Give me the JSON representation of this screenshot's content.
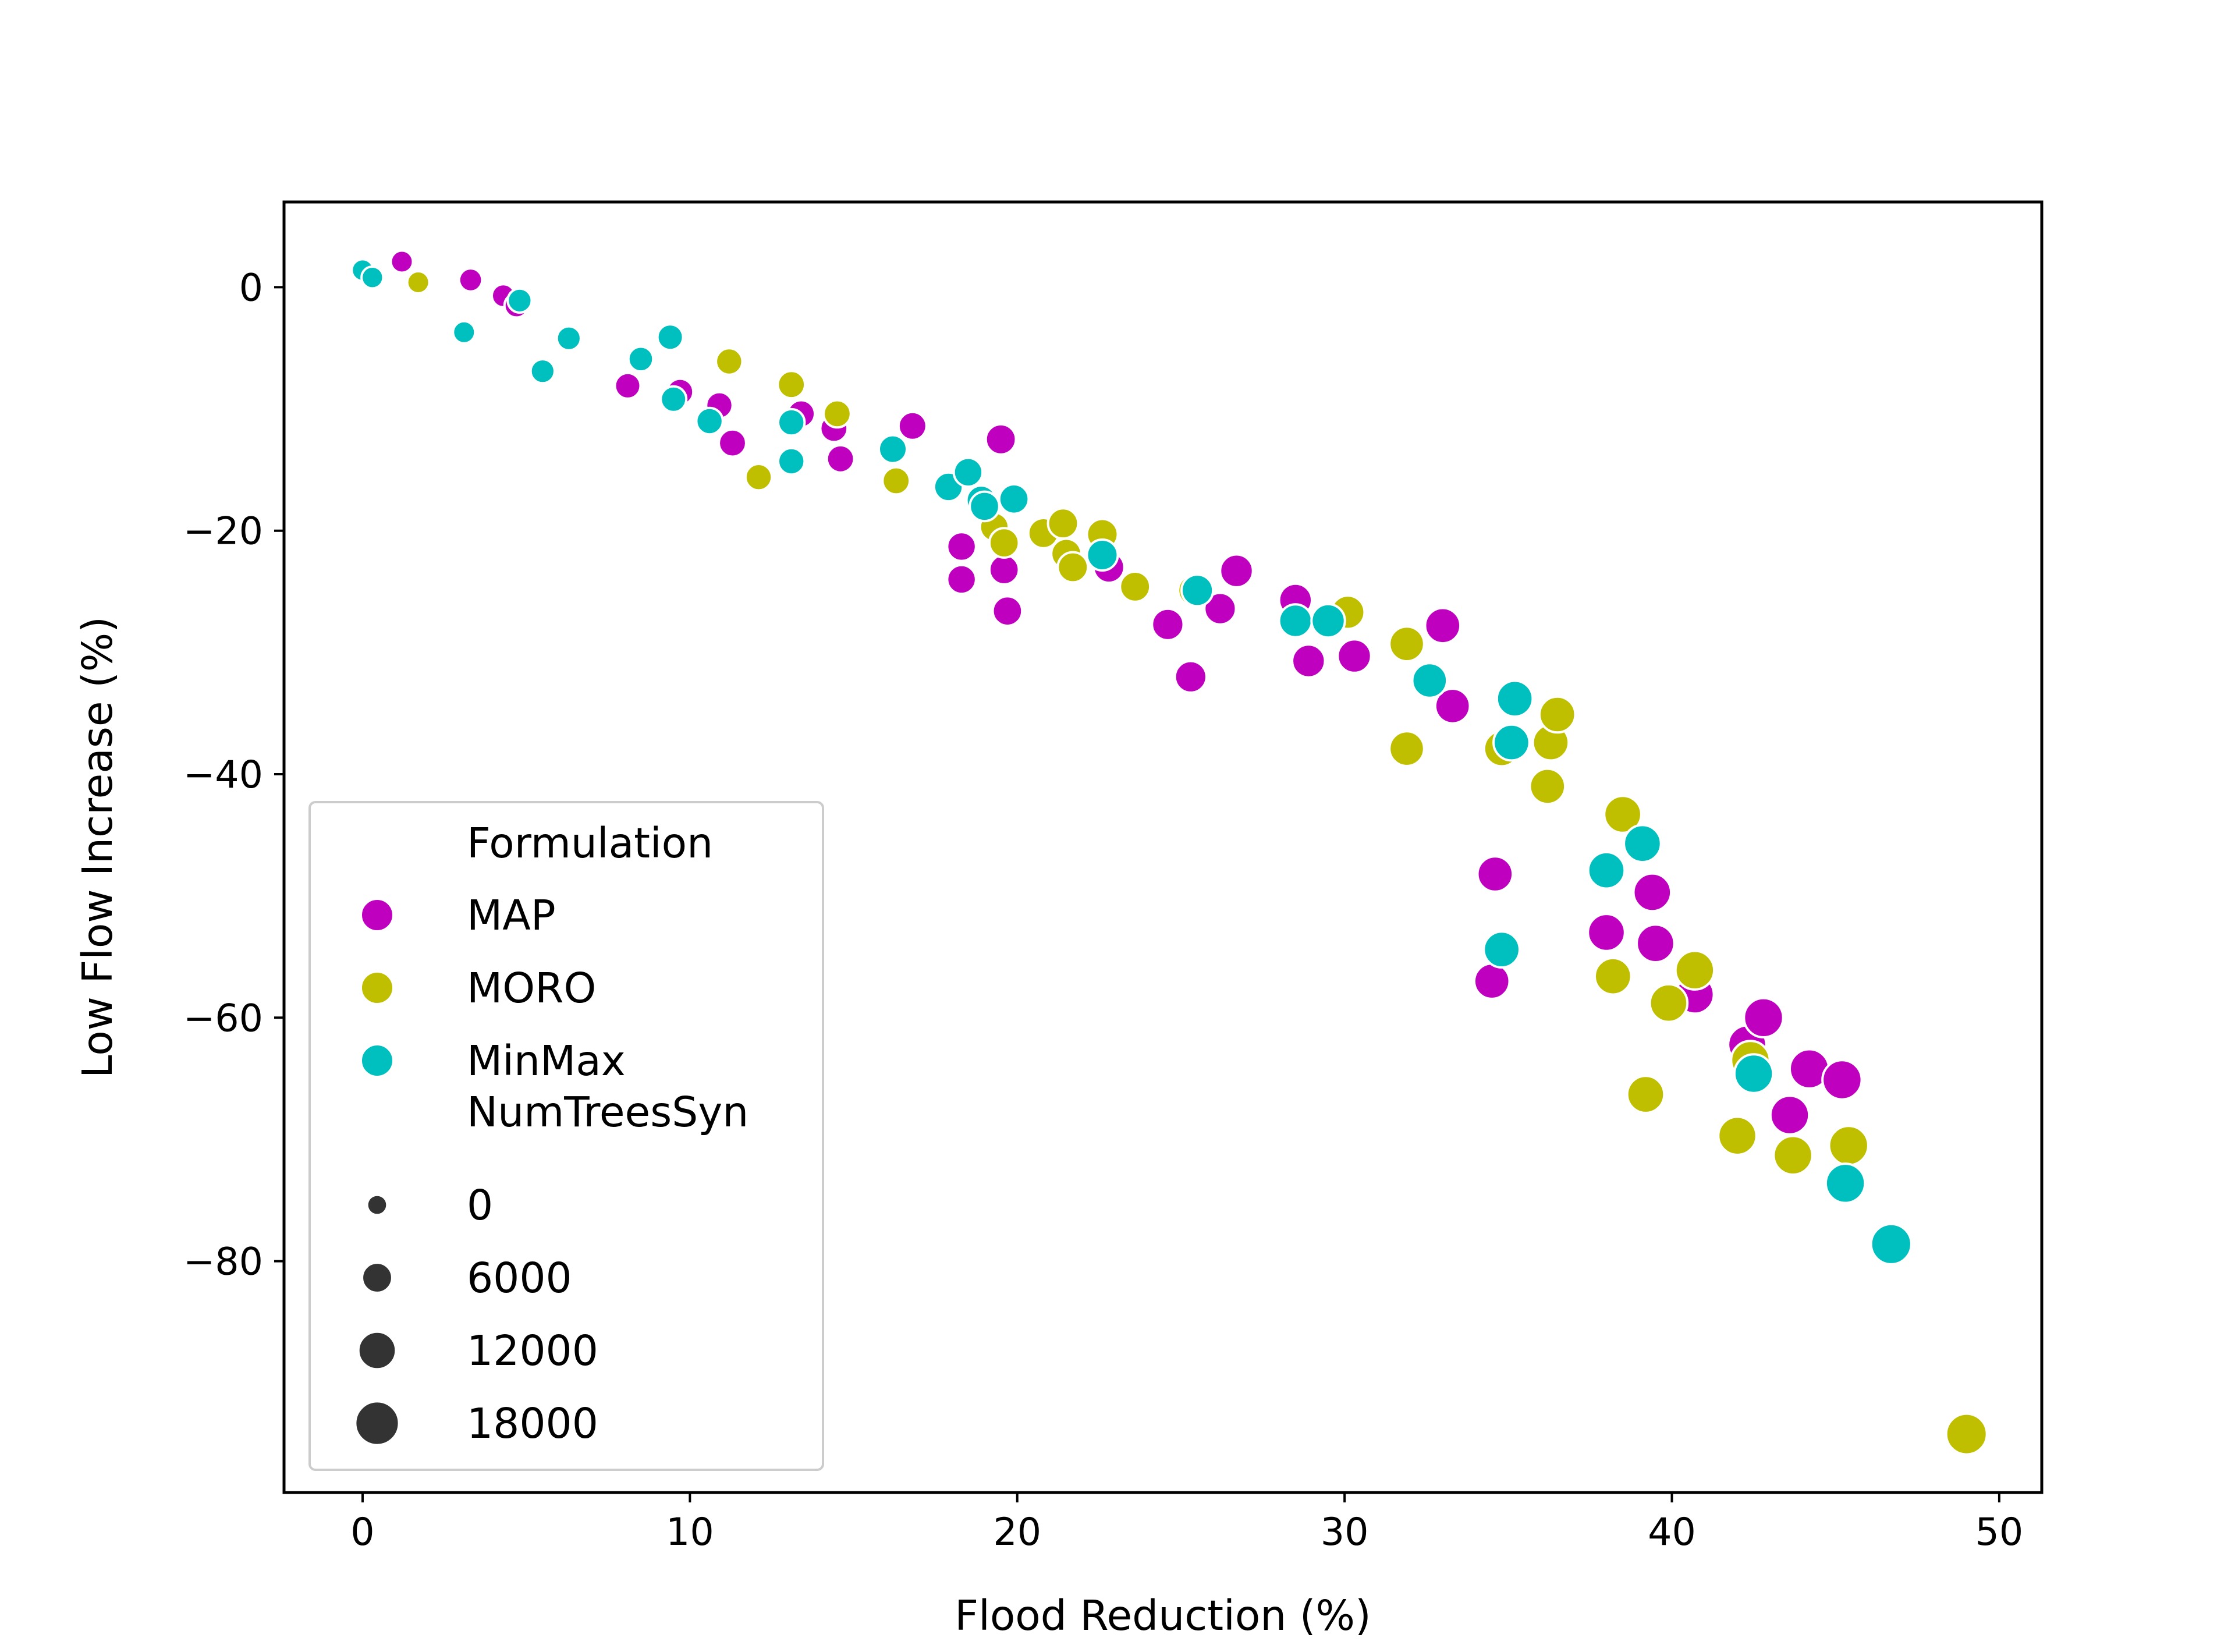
{
  "chart_data": {
    "type": "scatter",
    "xlabel": "Flood Reduction (%)",
    "ylabel": "Low Flow Increase (%)",
    "xlim": [
      -2.4,
      51.3
    ],
    "ylim": [
      -99,
      7
    ],
    "xticks": [
      0,
      10,
      20,
      30,
      40,
      50
    ],
    "yticks": [
      0,
      -20,
      -40,
      -60,
      -80
    ],
    "grid": false,
    "legend_placement": "lower-left",
    "legend": {
      "hue_title": "Formulation",
      "size_title": "NumTreesSyn",
      "size_entries": [
        {
          "label": "0",
          "value": 0
        },
        {
          "label": "6000",
          "value": 6000
        },
        {
          "label": "12000",
          "value": 12000
        },
        {
          "label": "18000",
          "value": 18000
        }
      ]
    },
    "series": [
      {
        "name": "MAP",
        "color": "#bf00bf",
        "points": [
          [
            1.2,
            2.1,
            1000
          ],
          [
            3.3,
            0.6,
            1500
          ],
          [
            4.3,
            -0.7,
            1500
          ],
          [
            4.7,
            -1.5,
            2000
          ],
          [
            8.1,
            -8.1,
            3000
          ],
          [
            9.7,
            -8.6,
            3500
          ],
          [
            10.9,
            -9.7,
            3500
          ],
          [
            11.3,
            -12.8,
            4000
          ],
          [
            13.4,
            -10.4,
            4000
          ],
          [
            14.4,
            -11.6,
            4000
          ],
          [
            14.6,
            -14.1,
            4000
          ],
          [
            16.8,
            -11.4,
            4500
          ],
          [
            18.3,
            -21.3,
            5000
          ],
          [
            18.3,
            -24.0,
            5000
          ],
          [
            19.5,
            -12.5,
            6000
          ],
          [
            19.6,
            -23.2,
            5500
          ],
          [
            19.7,
            -26.6,
            5500
          ],
          [
            22.8,
            -23.0,
            6500
          ],
          [
            24.6,
            -27.7,
            7000
          ],
          [
            25.3,
            -32.0,
            7000
          ],
          [
            26.2,
            -26.4,
            7000
          ],
          [
            26.7,
            -23.3,
            8000
          ],
          [
            28.5,
            -25.7,
            8000
          ],
          [
            28.9,
            -30.7,
            8000
          ],
          [
            30.3,
            -30.3,
            8500
          ],
          [
            33.0,
            -27.8,
            10000
          ],
          [
            33.3,
            -34.4,
            9500
          ],
          [
            34.5,
            -57.0,
            10000
          ],
          [
            34.6,
            -48.2,
            10000
          ],
          [
            38.0,
            -53.0,
            11500
          ],
          [
            39.4,
            -49.7,
            12000
          ],
          [
            39.5,
            -53.9,
            12000
          ],
          [
            40.7,
            -58.1,
            12500
          ],
          [
            42.3,
            -62.2,
            12500
          ],
          [
            42.8,
            -60.0,
            13500
          ],
          [
            43.6,
            -68.0,
            13000
          ],
          [
            44.2,
            -64.2,
            13500
          ],
          [
            45.2,
            -65.1,
            13500
          ]
        ]
      },
      {
        "name": "MORO",
        "color": "#bfbf00",
        "points": [
          [
            1.7,
            0.4,
            1000
          ],
          [
            11.2,
            -6.1,
            3500
          ],
          [
            12.1,
            -15.6,
            3500
          ],
          [
            13.1,
            -8.0,
            4000
          ],
          [
            14.5,
            -10.4,
            4000
          ],
          [
            16.3,
            -15.9,
            4000
          ],
          [
            19.3,
            -19.7,
            5000
          ],
          [
            19.6,
            -21.0,
            5500
          ],
          [
            20.8,
            -20.2,
            6000
          ],
          [
            21.4,
            -19.4,
            6000
          ],
          [
            21.5,
            -21.9,
            6000
          ],
          [
            21.7,
            -23.0,
            6000
          ],
          [
            22.6,
            -20.3,
            6500
          ],
          [
            23.6,
            -24.6,
            6000
          ],
          [
            25.4,
            -24.9,
            7000
          ],
          [
            30.1,
            -26.7,
            8500
          ],
          [
            31.9,
            -29.3,
            9500
          ],
          [
            31.9,
            -37.9,
            9500
          ],
          [
            34.8,
            -37.9,
            10000
          ],
          [
            36.2,
            -41.0,
            10000
          ],
          [
            36.3,
            -37.4,
            10500
          ],
          [
            36.5,
            -35.1,
            10500
          ],
          [
            38.2,
            -56.6,
            11000
          ],
          [
            38.5,
            -43.3,
            11500
          ],
          [
            39.2,
            -66.3,
            11500
          ],
          [
            39.9,
            -58.8,
            12000
          ],
          [
            40.7,
            -56.1,
            13000
          ],
          [
            42.0,
            -69.7,
            12500
          ],
          [
            42.4,
            -63.5,
            13000
          ],
          [
            43.7,
            -71.3,
            13000
          ],
          [
            45.4,
            -70.5,
            13500
          ],
          [
            49.0,
            -94.2,
            15000
          ]
        ]
      },
      {
        "name": "MinMax",
        "color": "#00bfbf",
        "points": [
          [
            0.0,
            1.4,
            800
          ],
          [
            0.3,
            0.8,
            800
          ],
          [
            3.1,
            -3.7,
            1000
          ],
          [
            4.8,
            -1.1,
            2000
          ],
          [
            5.5,
            -6.9,
            2000
          ],
          [
            6.3,
            -4.2,
            2000
          ],
          [
            8.5,
            -5.9,
            2500
          ],
          [
            9.4,
            -4.1,
            3000
          ],
          [
            9.5,
            -9.2,
            3000
          ],
          [
            10.6,
            -11.0,
            3500
          ],
          [
            13.1,
            -11.1,
            3500
          ],
          [
            13.1,
            -14.3,
            3500
          ],
          [
            16.2,
            -13.3,
            4500
          ],
          [
            17.9,
            -16.4,
            5000
          ],
          [
            18.5,
            -15.2,
            5000
          ],
          [
            18.9,
            -17.5,
            5500
          ],
          [
            19.0,
            -18.0,
            5500
          ],
          [
            19.9,
            -17.4,
            5500
          ],
          [
            22.6,
            -22.0,
            6500
          ],
          [
            25.5,
            -24.9,
            7000
          ],
          [
            28.5,
            -27.4,
            8000
          ],
          [
            29.5,
            -27.4,
            8500
          ],
          [
            32.6,
            -32.3,
            9500
          ],
          [
            34.8,
            -54.4,
            10500
          ],
          [
            35.1,
            -37.4,
            10500
          ],
          [
            35.2,
            -33.8,
            10500
          ],
          [
            38.0,
            -47.9,
            11000
          ],
          [
            39.1,
            -45.7,
            11500
          ],
          [
            42.5,
            -64.6,
            13000
          ],
          [
            45.3,
            -73.6,
            13500
          ],
          [
            46.7,
            -78.6,
            14500
          ]
        ]
      }
    ]
  }
}
